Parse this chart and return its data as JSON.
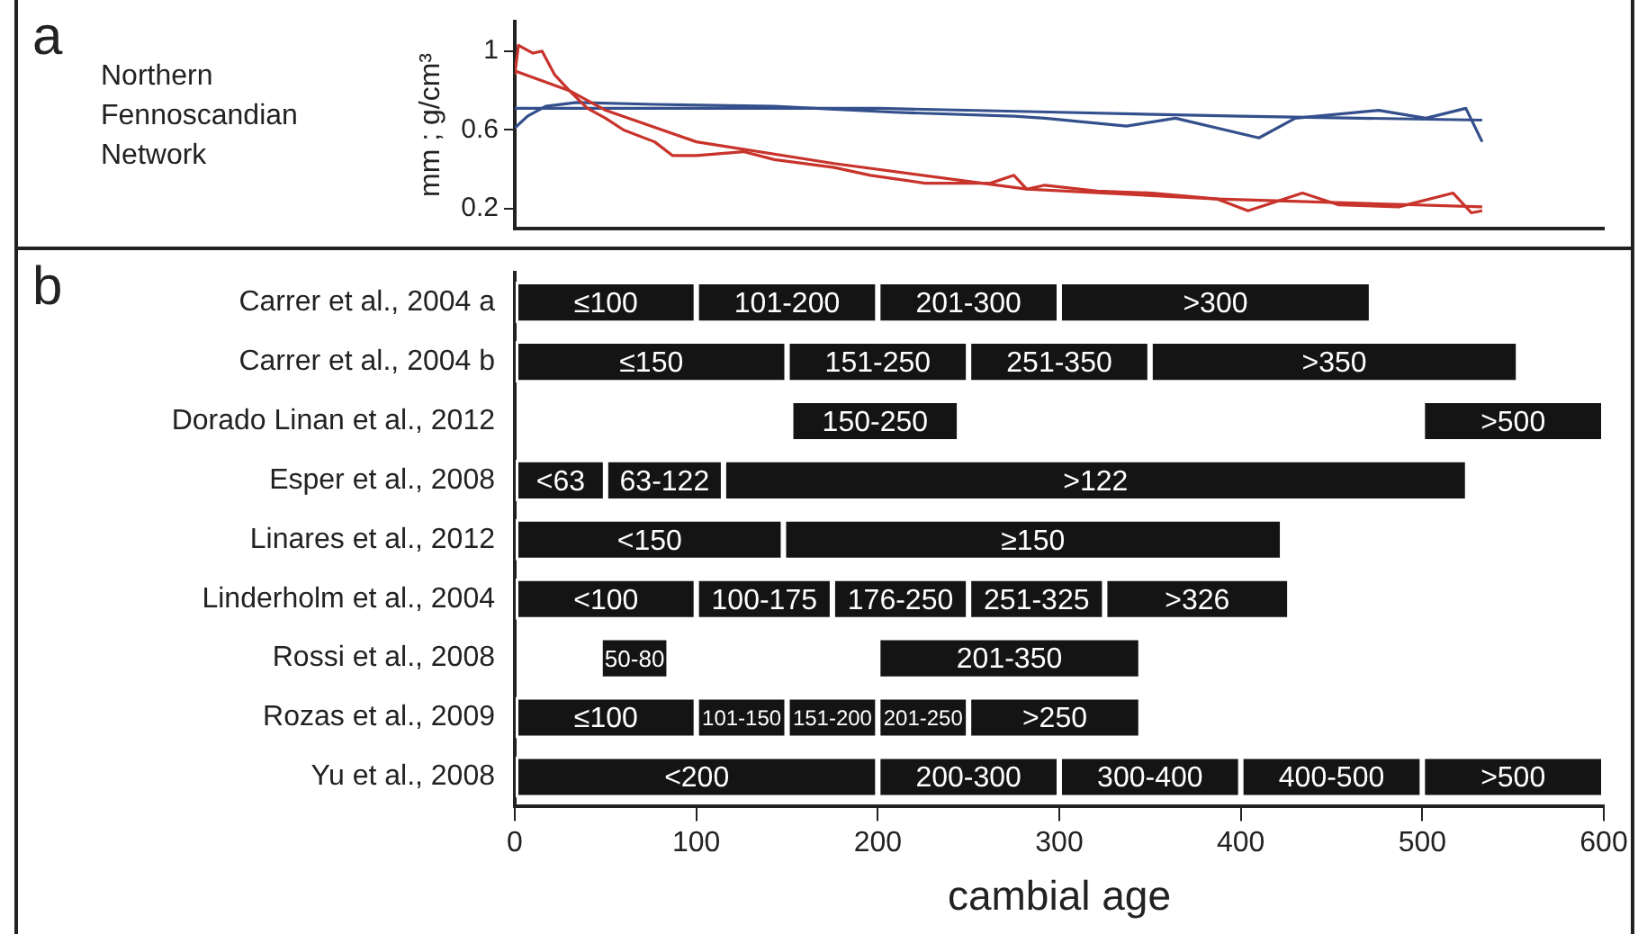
{
  "chart_data": [
    {
      "type": "line",
      "ylabel": "mm ; g/cm³",
      "annotations": [
        "a",
        "Northern Fennoscandian Network"
      ],
      "xlim": [
        0,
        600
      ],
      "ylim": [
        0.1,
        1.15
      ],
      "yticks": [
        0.2,
        0.6,
        1
      ],
      "tick_labels": "y",
      "grid": false,
      "legend": false,
      "marker": "none",
      "line_style": "solid",
      "series": [
        {
          "color": "#c8332b",
          "x": [
            0,
            2,
            10,
            15,
            22,
            30,
            40,
            50,
            60,
            77,
            87,
            100,
            126,
            143,
            176,
            196,
            226,
            242,
            262,
            275,
            282,
            292,
            321,
            351,
            387,
            404,
            434,
            454,
            487,
            517,
            527,
            533
          ],
          "values": [
            0.88,
            1.03,
            0.99,
            1.0,
            0.88,
            0.8,
            0.71,
            0.66,
            0.6,
            0.54,
            0.47,
            0.47,
            0.49,
            0.45,
            0.41,
            0.37,
            0.33,
            0.33,
            0.33,
            0.37,
            0.3,
            0.32,
            0.29,
            0.28,
            0.25,
            0.19,
            0.28,
            0.22,
            0.21,
            0.28,
            0.18,
            0.19
          ]
        },
        {
          "color": "#c8332b",
          "x": [
            0,
            30,
            50,
            100,
            176,
            282,
            387,
            533
          ],
          "values": [
            0.9,
            0.8,
            0.7,
            0.54,
            0.43,
            0.3,
            0.25,
            0.21
          ]
        },
        {
          "color": "#34508c",
          "x": [
            0,
            7,
            17,
            34,
            77,
            143,
            209,
            275,
            292,
            337,
            364,
            410,
            430,
            476,
            502,
            524,
            533
          ],
          "values": [
            0.61,
            0.67,
            0.72,
            0.74,
            0.73,
            0.72,
            0.69,
            0.67,
            0.66,
            0.62,
            0.66,
            0.56,
            0.66,
            0.7,
            0.66,
            0.71,
            0.54
          ]
        },
        {
          "color": "#34508c",
          "x": [
            0,
            200,
            300,
            400,
            533
          ],
          "values": [
            0.71,
            0.71,
            0.69,
            0.67,
            0.65
          ]
        }
      ]
    },
    {
      "type": "bar",
      "orientation": "horizontal",
      "annotations": [
        "b"
      ],
      "xlabel": "cambial age",
      "xlim": [
        0,
        600
      ],
      "xticks": [
        0,
        100,
        200,
        300,
        400,
        500,
        600
      ],
      "grid": false,
      "legend": false,
      "categories": [
        "Carrer et al., 2004 a",
        "Carrer et al., 2004 b",
        "Dorado Linan et al., 2012",
        "Esper et al., 2008",
        "Linares et al., 2012",
        "Linderholm et al., 2004",
        "Rossi et al., 2008",
        "Rozas et al., 2009",
        "Yu et al., 2008"
      ],
      "series": [
        {
          "color": "#141414",
          "base": [
            0,
            0,
            152,
            0,
            0,
            0,
            47,
            0,
            0
          ],
          "values": [
            100,
            150,
            93,
            50,
            148,
            100,
            38,
            100,
            200
          ],
          "value_labels": [
            "≤100",
            "≤150",
            "150-250",
            "<63",
            "<150",
            "<100",
            "50-80",
            "≤100",
            "<200"
          ]
        },
        {
          "color": "#141414",
          "base": [
            100,
            150,
            500,
            50,
            148,
            100,
            200,
            100,
            200
          ],
          "values": [
            100,
            100,
            100,
            65,
            275,
            75,
            145,
            50,
            100
          ],
          "value_labels": [
            "101-200",
            "151-250",
            ">500",
            "63-122",
            "≥150",
            "100-175",
            "201-350",
            "101-150",
            "200-300"
          ]
        },
        {
          "color": "#141414",
          "base": [
            200,
            250,
            null,
            115,
            null,
            175,
            null,
            150,
            300
          ],
          "values": [
            100,
            100,
            null,
            410,
            null,
            75,
            null,
            50,
            100
          ],
          "value_labels": [
            "201-300",
            "251-350",
            null,
            ">122",
            null,
            "176-250",
            null,
            "151-200",
            "300-400"
          ]
        },
        {
          "color": "#141414",
          "base": [
            300,
            350,
            null,
            null,
            null,
            250,
            null,
            200,
            400
          ],
          "values": [
            172,
            203,
            null,
            null,
            null,
            75,
            null,
            50,
            100
          ],
          "value_labels": [
            ">300",
            ">350",
            null,
            null,
            null,
            "251-325",
            null,
            "201-250",
            "400-500"
          ]
        },
        {
          "color": "#141414",
          "base": [
            null,
            null,
            null,
            null,
            null,
            325,
            null,
            250,
            500
          ],
          "values": [
            null,
            null,
            null,
            null,
            null,
            102,
            null,
            95,
            100
          ],
          "value_labels": [
            null,
            null,
            null,
            null,
            null,
            ">326",
            null,
            ">250",
            ">500"
          ]
        }
      ]
    }
  ]
}
